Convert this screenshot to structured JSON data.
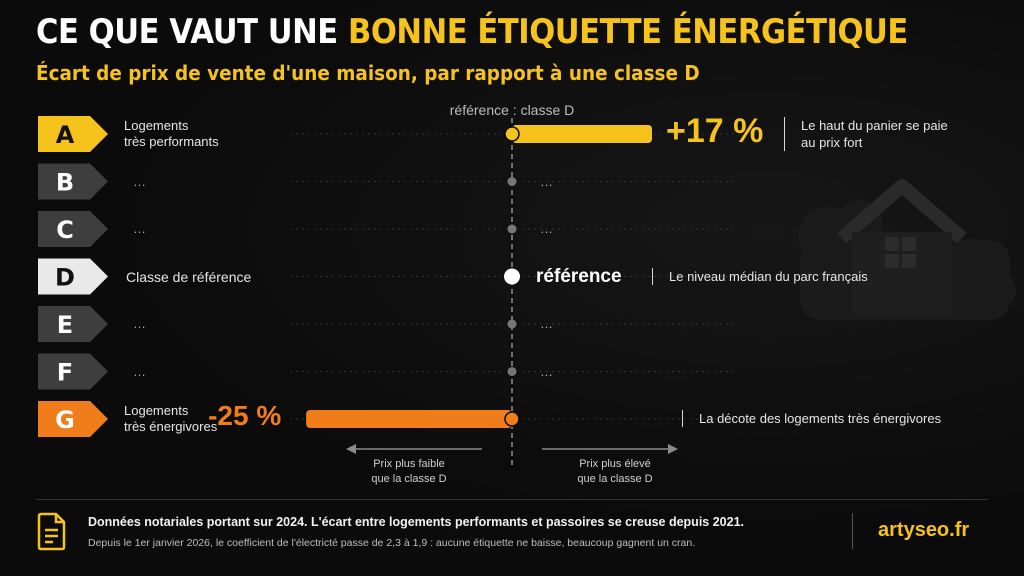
{
  "header": {
    "title_plain": "CE QUE VAUT UNE",
    "title_highlight": "BONNE ÉTIQUETTE ÉNERGÉTIQUE",
    "subtitle": "Écart de prix de vente d'une maison, par rapport à une classe D"
  },
  "colors": {
    "accent_yellow": "#f6c21c",
    "accent_orange": "#f07d1a",
    "class_grey": "#3e3e3e",
    "reference_white": "#e9e9e9",
    "background": "#0b0b0b"
  },
  "chart_data": {
    "type": "bar",
    "reference_label": "référence : classe D",
    "categories": [
      "A",
      "B",
      "C",
      "D",
      "E",
      "F",
      "G"
    ],
    "category_labels": [
      "Logements\ntrès performants",
      "…",
      "…",
      "Classe de référence",
      "…",
      "…",
      "Logements\ntrès énergivores"
    ],
    "values": [
      17,
      null,
      null,
      0,
      null,
      null,
      -25
    ],
    "unit": "%",
    "value_labels": [
      "+17 %",
      "…",
      "…",
      "référence",
      "…",
      "…",
      "-25 %"
    ],
    "notes": [
      "Le haut du panier se paie\nau prix fort",
      "",
      "",
      "Le niveau médian du parc français",
      "",
      "",
      "La décote des logements très énergivores"
    ],
    "xlim": [
      -25,
      25
    ],
    "zone_labels": {
      "left": "Prix plus faible\nque la classe D",
      "right": "Prix plus élevé\nque la classe D"
    }
  },
  "footer": {
    "icon": "document-icon",
    "line1": "Données notariales portant sur 2024. L'écart entre logements performants et passoires se creuse depuis 2021.",
    "line2": "Depuis le 1er janvier 2026, le coefficient de l'électricté passe de 2,3 à 1,9 : aucune étiquette ne baisse, beaucoup gagnent un cran.",
    "brand": "artyseo.fr"
  }
}
